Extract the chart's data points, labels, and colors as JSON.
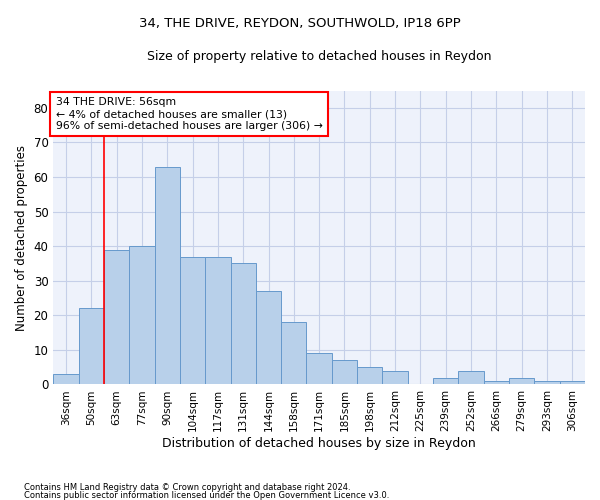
{
  "title1": "34, THE DRIVE, REYDON, SOUTHWOLD, IP18 6PP",
  "title2": "Size of property relative to detached houses in Reydon",
  "xlabel": "Distribution of detached houses by size in Reydon",
  "ylabel": "Number of detached properties",
  "categories": [
    "36sqm",
    "50sqm",
    "63sqm",
    "77sqm",
    "90sqm",
    "104sqm",
    "117sqm",
    "131sqm",
    "144sqm",
    "158sqm",
    "171sqm",
    "185sqm",
    "198sqm",
    "212sqm",
    "225sqm",
    "239sqm",
    "252sqm",
    "266sqm",
    "279sqm",
    "293sqm",
    "306sqm"
  ],
  "values": [
    3,
    22,
    39,
    40,
    63,
    37,
    37,
    35,
    27,
    18,
    9,
    7,
    5,
    4,
    0,
    2,
    4,
    1,
    2,
    1,
    1
  ],
  "bar_color": "#b8d0ea",
  "bar_edge_color": "#6699cc",
  "red_line_x": 1.5,
  "annotation_line1": "34 THE DRIVE: 56sqm",
  "annotation_line2": "← 4% of detached houses are smaller (13)",
  "annotation_line3": "96% of semi-detached houses are larger (306) →",
  "ylim": [
    0,
    85
  ],
  "yticks": [
    0,
    10,
    20,
    30,
    40,
    50,
    60,
    70,
    80
  ],
  "footnote1": "Contains HM Land Registry data © Crown copyright and database right 2024.",
  "footnote2": "Contains public sector information licensed under the Open Government Licence v3.0.",
  "bg_color": "#eef2fb",
  "grid_color": "#c5cfe8"
}
